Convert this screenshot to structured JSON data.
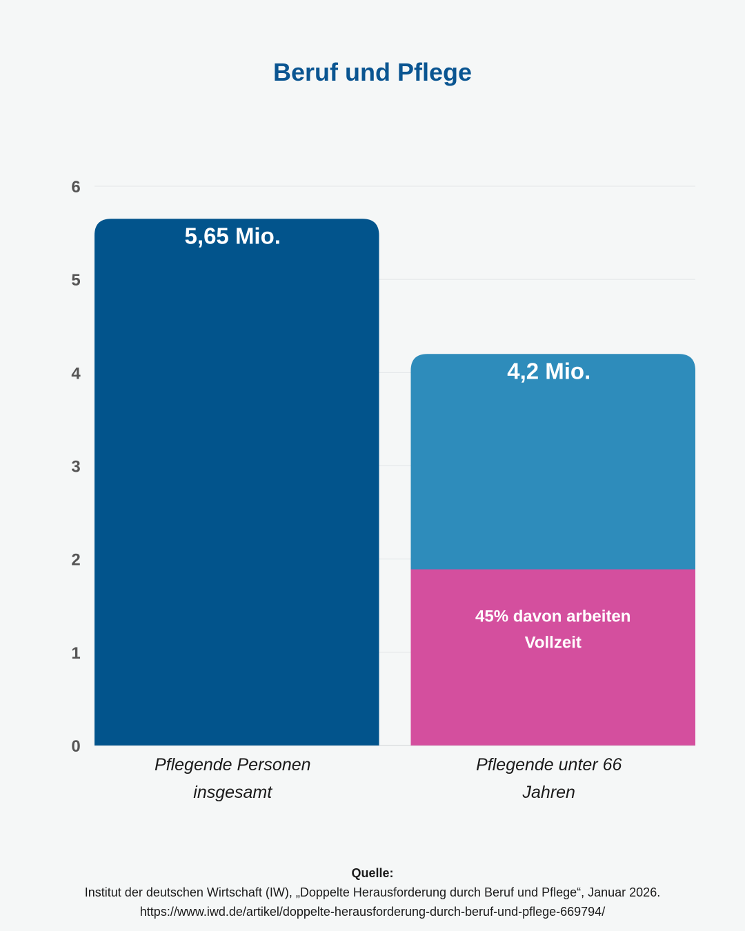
{
  "chart_data": {
    "type": "bar",
    "title": "Beruf und Pflege",
    "categories": [
      "Pflegende Personen insgesamt",
      "Pflegende unter 66 Jahren"
    ],
    "category_lines": [
      [
        "Pflegende Personen",
        "insgesamt"
      ],
      [
        "Pflegende unter 66",
        "Jahren"
      ]
    ],
    "values": [
      5.65,
      4.2
    ],
    "value_labels": [
      "5,65 Mio.",
      "4,2 Mio."
    ],
    "colors": [
      "#02548c",
      "#2e8cbb"
    ],
    "sub_segment": {
      "category_index": 1,
      "share": 0.45,
      "value": 1.89,
      "color": "#d44f9e",
      "label_lines": [
        "45% davon arbeiten",
        "Vollzeit"
      ]
    },
    "yticks": [
      0,
      1,
      2,
      3,
      4,
      5,
      6
    ],
    "ylim": [
      0,
      6
    ],
    "grid": true,
    "xlabel": "",
    "ylabel": ""
  },
  "source": {
    "heading": "Quelle:",
    "line1": "Institut der deutschen Wirtschaft (IW), „Doppelte Herausforderung durch Beruf und Pflege“, Januar 2026.",
    "line2": "https://www.iwd.de/artikel/doppelte-herausforderung-durch-beruf-und-pflege-669794/"
  }
}
